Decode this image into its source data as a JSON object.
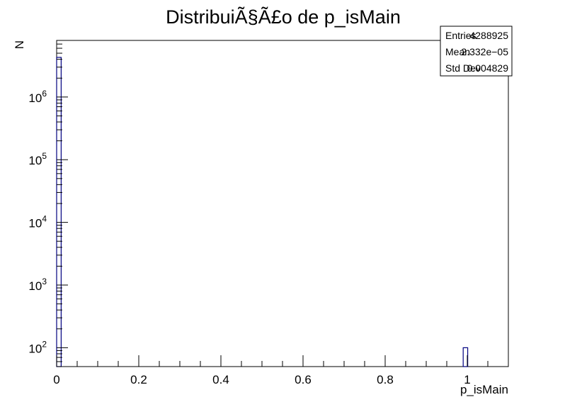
{
  "chart_data": {
    "type": "bar",
    "title": "DistribuiÃ§Ã£o de p_isMain",
    "xlabel": "p_isMain",
    "ylabel": "N",
    "xlim": [
      0,
      1.1
    ],
    "ylim": [
      50,
      8000000
    ],
    "y_scale": "log",
    "grid": false,
    "bar_color": "#000080",
    "bins": [
      {
        "x_low": 0.0,
        "x_high": 0.011,
        "count": 4288825
      },
      {
        "x_low": 0.99,
        "x_high": 1.001,
        "count": 100
      }
    ],
    "x_ticks": [
      "0",
      "0.2",
      "0.4",
      "0.6",
      "0.8",
      "1"
    ],
    "x_tick_values": [
      0,
      0.2,
      0.4,
      0.6,
      0.8,
      1.0
    ],
    "y_ticks": [
      {
        "value": 100,
        "base": "10",
        "exp": "2"
      },
      {
        "value": 1000,
        "base": "10",
        "exp": "3"
      },
      {
        "value": 10000,
        "base": "10",
        "exp": "4"
      },
      {
        "value": 100000,
        "base": "10",
        "exp": "5"
      },
      {
        "value": 1000000,
        "base": "10",
        "exp": "6"
      }
    ],
    "stats": {
      "placement": "top-right",
      "rows": [
        {
          "label": "Entries",
          "value": "4288925"
        },
        {
          "label": "Mean",
          "value": "2.332e−05"
        },
        {
          "label": "Std Dev",
          "value": "0.004829"
        }
      ]
    }
  }
}
